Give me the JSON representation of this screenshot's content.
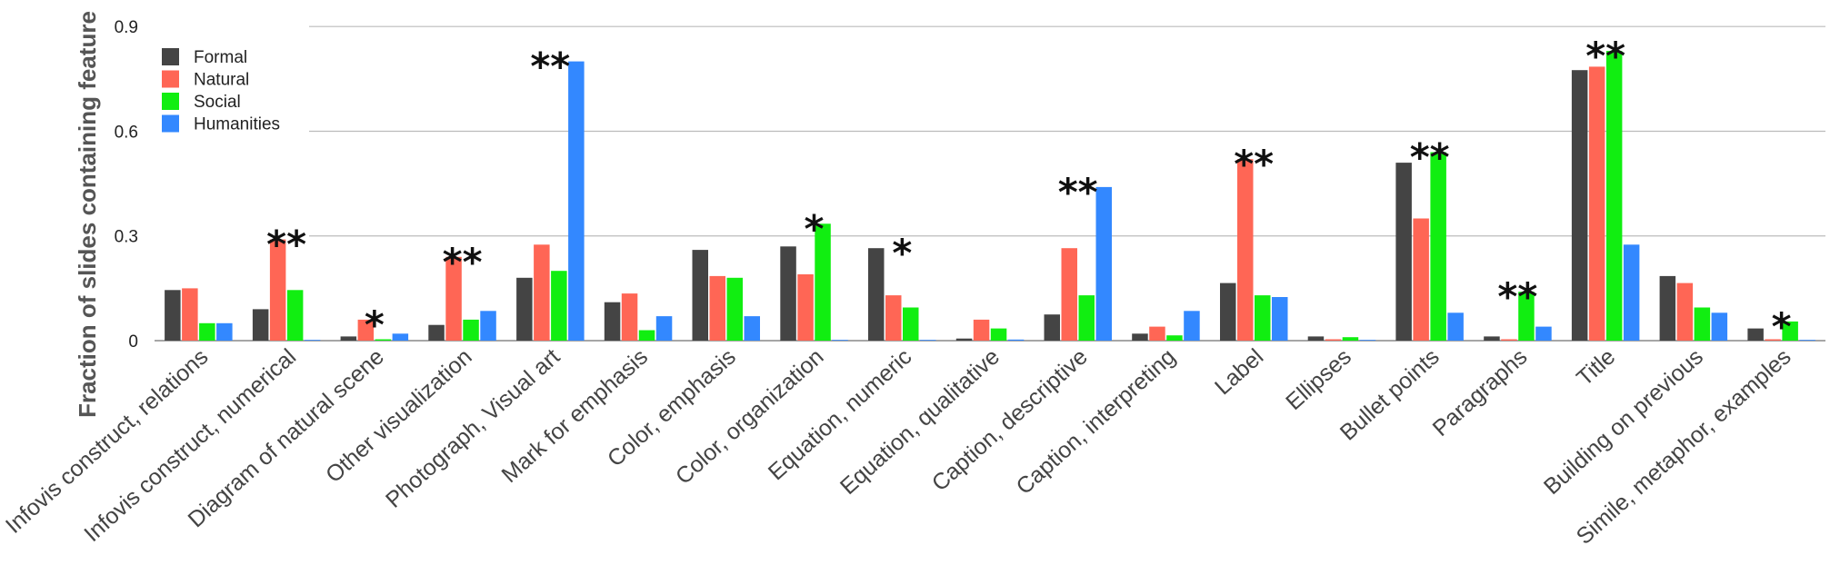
{
  "chart_data": {
    "type": "bar",
    "title": "",
    "xlabel": "",
    "ylabel": "Fraction of slides containing feature",
    "ylim": [
      0,
      0.95
    ],
    "yticks": [
      0,
      0.3,
      0.6,
      0.9
    ],
    "ytick_labels": [
      "0",
      "0.3",
      "0.6",
      "0.9"
    ],
    "grid": true,
    "legend_position": "top-left",
    "categories": [
      "Infovis construct, relations",
      "Infovis construct, numerical",
      "Diagram of natural scene",
      "Other visualization",
      "Photograph, Visual art",
      "Mark for emphasis",
      "Color, emphasis",
      "Color, organization",
      "Equation, numeric",
      "Equation, qualitative",
      "Caption, descriptive",
      "Caption, interpreting",
      "Label",
      "Ellipses",
      "Bullet points",
      "Paragraphs",
      "Title",
      "Building on previous",
      "Simile, metaphor, examples"
    ],
    "series": [
      {
        "name": "Formal",
        "color": "#444444",
        "values": [
          0.145,
          0.09,
          0.012,
          0.045,
          0.18,
          0.11,
          0.26,
          0.27,
          0.265,
          0.006,
          0.075,
          0.02,
          0.165,
          0.012,
          0.51,
          0.012,
          0.775,
          0.185,
          0.035
        ]
      },
      {
        "name": "Natural",
        "color": "#ff6655",
        "values": [
          0.15,
          0.29,
          0.06,
          0.24,
          0.275,
          0.135,
          0.185,
          0.19,
          0.13,
          0.06,
          0.265,
          0.04,
          0.52,
          0.004,
          0.35,
          0.004,
          0.785,
          0.165,
          0.004
        ]
      },
      {
        "name": "Social",
        "color": "#11ee11",
        "values": [
          0.05,
          0.145,
          0.004,
          0.06,
          0.2,
          0.03,
          0.18,
          0.335,
          0.095,
          0.035,
          0.13,
          0.015,
          0.13,
          0.01,
          0.54,
          0.14,
          0.83,
          0.095,
          0.055
        ]
      },
      {
        "name": "Humanities",
        "color": "#3388ff",
        "values": [
          0.05,
          0.001,
          0.02,
          0.085,
          0.8,
          0.07,
          0.07,
          0.001,
          0.001,
          0.003,
          0.44,
          0.085,
          0.125,
          0.001,
          0.08,
          0.04,
          0.275,
          0.08,
          0.001
        ]
      }
    ],
    "annotations": [
      "",
      "**",
      "*",
      "**",
      "**",
      "",
      "",
      "*",
      "*",
      "",
      "**",
      "",
      "**",
      "",
      "**",
      "**",
      "**",
      "",
      "*"
    ]
  }
}
